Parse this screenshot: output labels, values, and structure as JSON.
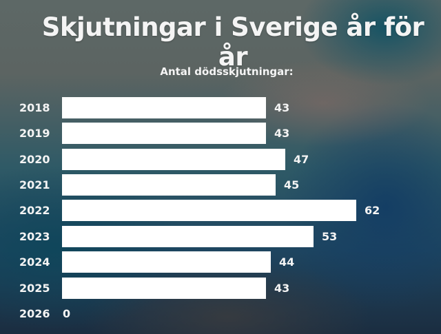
{
  "header": {
    "title": "Skjutningar i Sverige år för år",
    "subtitle": "Antal dödsskjutningar:"
  },
  "colors": {
    "bar": "#ffffff",
    "text": "#f4f4f4",
    "background_top": "#5d6866",
    "background_bottom": "#1b2d40"
  },
  "chart_data": {
    "type": "bar",
    "orientation": "horizontal",
    "title": "Skjutningar i Sverige år för år",
    "subtitle": "Antal dödsskjutningar:",
    "xlabel": "",
    "ylabel": "",
    "categories": [
      "2018",
      "2019",
      "2020",
      "2021",
      "2022",
      "2023",
      "2024",
      "2025",
      "2026"
    ],
    "values": [
      43,
      43,
      47,
      45,
      62,
      53,
      44,
      43,
      0
    ],
    "data_labels": [
      "43",
      "43",
      "47",
      "45",
      "62",
      "53",
      "44",
      "43",
      "0"
    ],
    "xlim": [
      0,
      62
    ],
    "grid": false,
    "legend": null
  }
}
